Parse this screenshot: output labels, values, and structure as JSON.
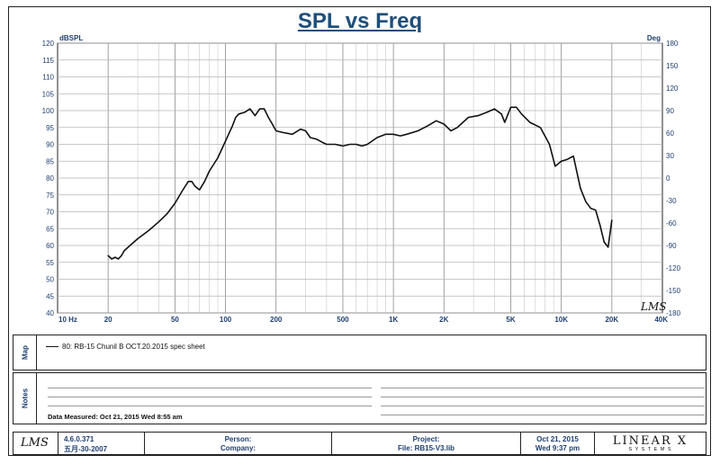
{
  "title": "SPL vs Freq",
  "chart_data": {
    "type": "line",
    "title": "SPL vs Freq",
    "x_scale": "log",
    "xlim": [
      10,
      40000
    ],
    "ylim": [
      40,
      120
    ],
    "y2lim": [
      -180,
      180
    ],
    "ylabel": "dBSPL",
    "y2label": "Deg",
    "x_ticks": [
      "10 Hz",
      "20",
      "50",
      "100",
      "200",
      "500",
      "1K",
      "2K",
      "5K",
      "10K",
      "20K",
      "40K"
    ],
    "y_ticks": [
      40,
      45,
      50,
      55,
      60,
      65,
      70,
      75,
      80,
      85,
      90,
      95,
      100,
      105,
      110,
      115,
      120
    ],
    "y2_ticks": [
      -180,
      -150,
      -120,
      -90,
      -60,
      -30,
      0,
      30,
      60,
      90,
      120,
      150,
      180
    ],
    "grid": true,
    "series": [
      {
        "name": "80: RB-15  Chunil B OCT.20.2015 spec sheet",
        "x": [
          20,
          21,
          22,
          23,
          24,
          25,
          27,
          30,
          35,
          40,
          45,
          50,
          55,
          60,
          63,
          66,
          70,
          75,
          80,
          90,
          100,
          110,
          115,
          120,
          130,
          140,
          150,
          160,
          170,
          180,
          190,
          200,
          220,
          250,
          280,
          300,
          320,
          350,
          380,
          400,
          450,
          500,
          550,
          600,
          650,
          700,
          800,
          900,
          1000,
          1100,
          1200,
          1400,
          1600,
          1800,
          2000,
          2200,
          2400,
          2800,
          3200,
          3600,
          4000,
          4400,
          4600,
          5000,
          5400,
          5800,
          6500,
          7500,
          8500,
          9200,
          10000,
          10800,
          11800,
          13000,
          14000,
          15000,
          16000,
          17000,
          18000,
          19000,
          20000
        ],
        "values": [
          57,
          56,
          56.5,
          56,
          57,
          58.5,
          60,
          62,
          64.5,
          67,
          69.5,
          72.5,
          76,
          79,
          79,
          77.5,
          76.5,
          79,
          82,
          86,
          91,
          95.5,
          98,
          99,
          99.5,
          100.5,
          98.5,
          100.5,
          100.5,
          98,
          96,
          94,
          93.5,
          93,
          94.5,
          94,
          92,
          91.5,
          90.5,
          90,
          90,
          89.5,
          90,
          90,
          89.5,
          90,
          92,
          93,
          93,
          92.5,
          93,
          94,
          95.5,
          97,
          96,
          94,
          95,
          98,
          98.5,
          99.5,
          100.5,
          99,
          96.5,
          101,
          101,
          99,
          96.5,
          95,
          90,
          83.5,
          85,
          85.5,
          86.5,
          77,
          73,
          71,
          70.5,
          66,
          61,
          59.5,
          67.5
        ]
      }
    ],
    "annotation": "LMS"
  },
  "map": {
    "label": "Map",
    "legend_entry": "80: RB-15  Chunil B OCT.20.2015 spec sheet"
  },
  "notes": {
    "label": "Notes",
    "measured": "Data Measured: Oct 21, 2015  Wed  8:55 am"
  },
  "footer": {
    "logo": "LMS",
    "version": "4.6.0.371",
    "version_date": "五月-30-2007",
    "person_label": "Person:",
    "company_label": "Company:",
    "project_label": "Project:",
    "file_label": "File: RB15-V3.lib",
    "date": "Oct 21, 2015",
    "time": "Wed  9:37 pm",
    "brand": "LINEAR X",
    "brand_sub": "S Y S T E M S"
  }
}
